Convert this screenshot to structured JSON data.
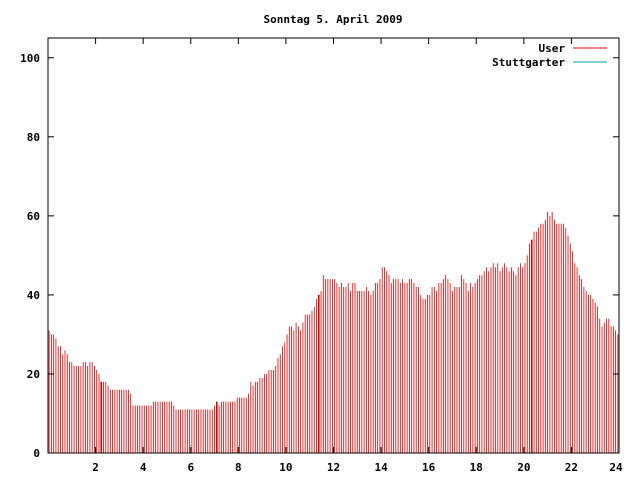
{
  "chart_data": {
    "type": "bar",
    "title": "Sonntag 5. April 2009",
    "xlabel": "",
    "ylabel": "",
    "xlim": [
      0,
      24
    ],
    "ylim": [
      0,
      105
    ],
    "x_ticks": [
      2,
      4,
      6,
      8,
      10,
      12,
      14,
      16,
      18,
      20,
      22,
      24
    ],
    "y_ticks": [
      0,
      20,
      40,
      60,
      80,
      100
    ],
    "legend_position": "top-right",
    "grid": false,
    "series": [
      {
        "name": "User",
        "color": "#e00000",
        "values": [
          31,
          30,
          30,
          29,
          27,
          27,
          25,
          26,
          25,
          23,
          23,
          22,
          22,
          22,
          22,
          23,
          23,
          22,
          23,
          23,
          22,
          21,
          20,
          18,
          18,
          18,
          17,
          16,
          16,
          16,
          16,
          16,
          16,
          16,
          16,
          16,
          15,
          12,
          12,
          12,
          12,
          12,
          12,
          12,
          12,
          12,
          13,
          13,
          13,
          13,
          13,
          13,
          13,
          13,
          13,
          12,
          11,
          11,
          11,
          11,
          11,
          11,
          11,
          11,
          11,
          11,
          11,
          11,
          11,
          11,
          11,
          11,
          11,
          12,
          13,
          12,
          13,
          13,
          13,
          13,
          13,
          13,
          13,
          14,
          14,
          14,
          14,
          14,
          15,
          18,
          17,
          18,
          18,
          19,
          19,
          20,
          20,
          21,
          21,
          21,
          22,
          24,
          25,
          27,
          28,
          30,
          32,
          32,
          31,
          33,
          32,
          31,
          33,
          35,
          35,
          35,
          36,
          37,
          39,
          40,
          41,
          45,
          44,
          44,
          44,
          44,
          44,
          43,
          42,
          43,
          42,
          42,
          43,
          41,
          43,
          43,
          41,
          41,
          41,
          41,
          42,
          41,
          40,
          41,
          43,
          43,
          44,
          47,
          47,
          46,
          45,
          43,
          44,
          44,
          44,
          43,
          44,
          43,
          43,
          44,
          44,
          43,
          42,
          42,
          40,
          39,
          39,
          40,
          40,
          42,
          42,
          41,
          43,
          43,
          44,
          45,
          44,
          43,
          41,
          42,
          42,
          42,
          45,
          44,
          43,
          41,
          43,
          42,
          43,
          44,
          45,
          45,
          46,
          47,
          46,
          47,
          48,
          47,
          48,
          46,
          47,
          48,
          47,
          46,
          47,
          46,
          45,
          47,
          48,
          47,
          48,
          50,
          53,
          54,
          56,
          56,
          57,
          58,
          58,
          59,
          61,
          60,
          61,
          59,
          58,
          58,
          58,
          58,
          57,
          55,
          53,
          51,
          48,
          47,
          45,
          44,
          42,
          41,
          40,
          40,
          39,
          38,
          37,
          34,
          32,
          33,
          34,
          34,
          32,
          32,
          31,
          30
        ],
        "highlight_indices": [
          23,
          74,
          119,
          213
        ]
      },
      {
        "name": "Stuttgarter",
        "color": "#00a0a0",
        "values": []
      }
    ]
  }
}
